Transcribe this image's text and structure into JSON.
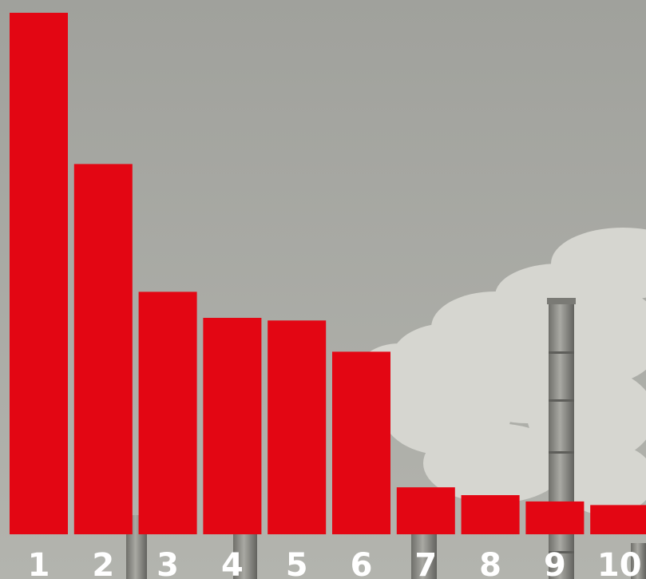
{
  "colors": {
    "bar": "#e30613",
    "label": "#ffffff",
    "sky": "#a4a5a0",
    "smoke": "#dcdcd6",
    "chimney": "#8a8a85"
  },
  "background": {
    "description_icon": "factory-chimney-smoke-photo"
  },
  "chart_data": {
    "type": "bar",
    "categories": [
      "1",
      "2",
      "3",
      "4",
      "5",
      "6",
      "7",
      "8",
      "9",
      "10"
    ],
    "values": [
      100,
      71,
      46.5,
      41.5,
      41,
      35,
      9,
      7.5,
      6.3,
      5.6
    ],
    "ylim": [
      0,
      100
    ],
    "title": "",
    "xlabel": "",
    "ylabel": "",
    "grid": false,
    "legend": "none"
  }
}
